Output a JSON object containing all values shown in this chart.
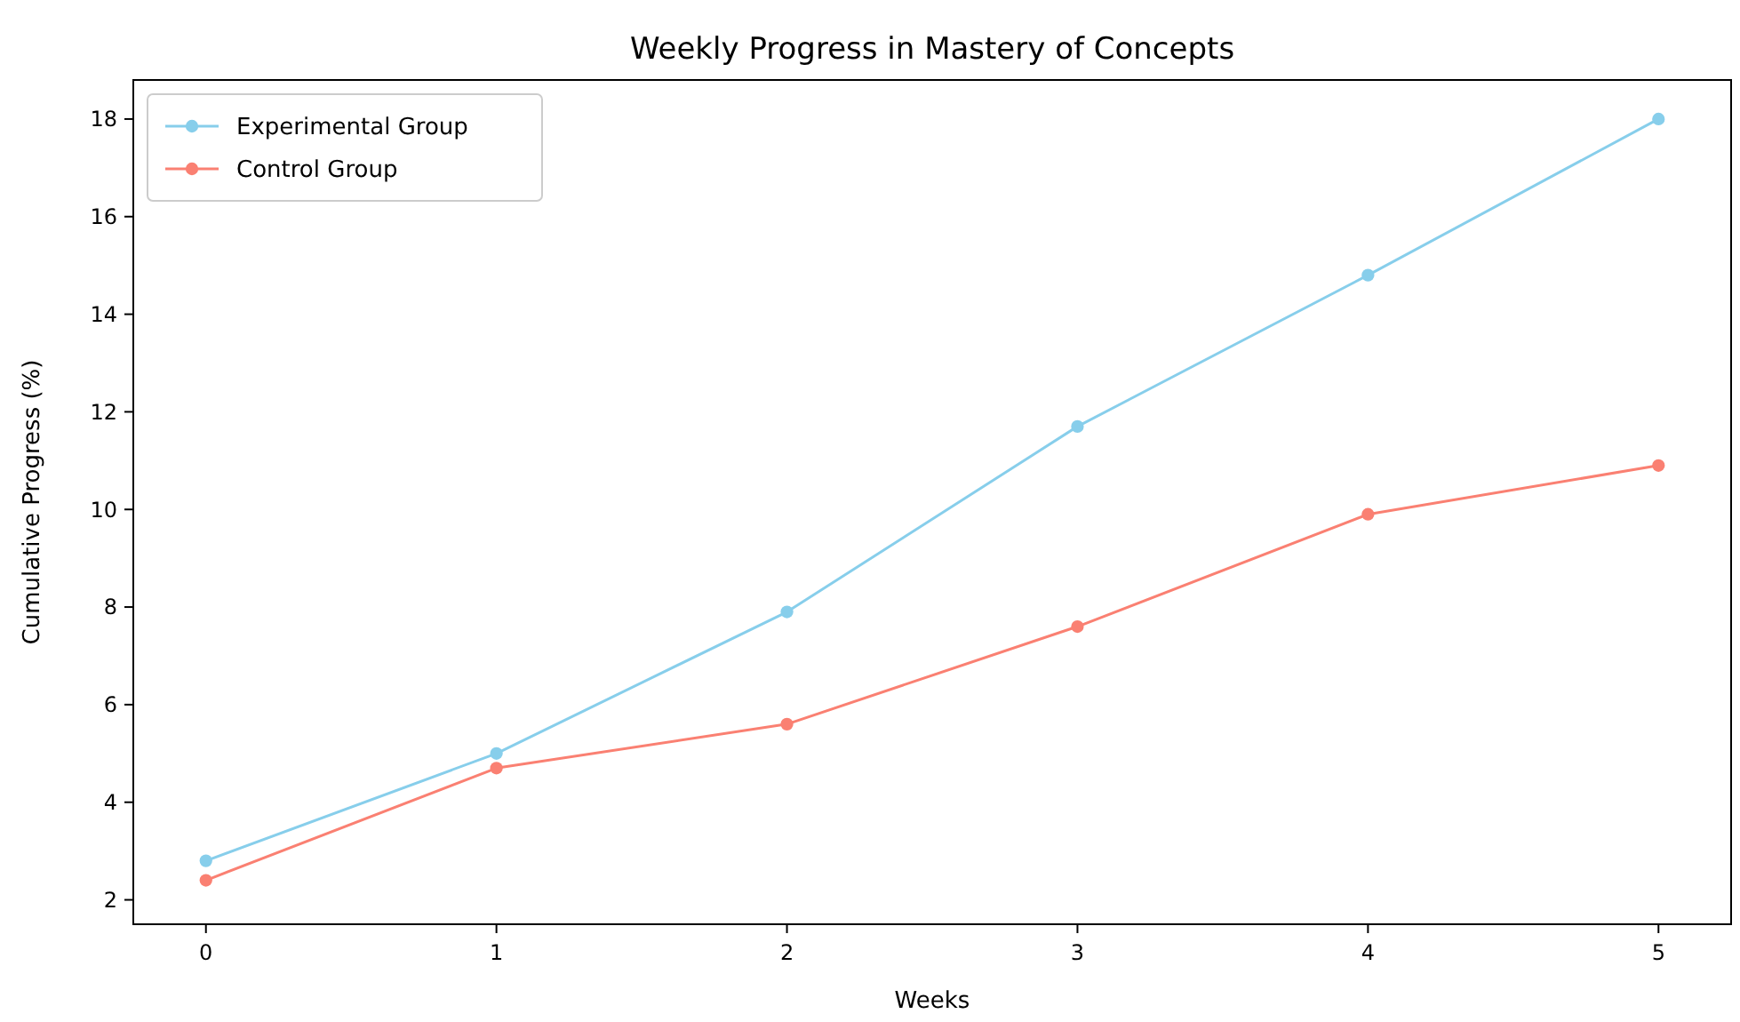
{
  "chart_data": {
    "type": "line",
    "title": "Weekly Progress in Mastery of Concepts",
    "xlabel": "Weeks",
    "ylabel": "Cumulative Progress (%)",
    "x": [
      0,
      1,
      2,
      3,
      4,
      5
    ],
    "series": [
      {
        "name": "Experimental Group",
        "color": "#87ceeb",
        "values": [
          2.8,
          5.0,
          7.9,
          11.7,
          14.8,
          18.0
        ]
      },
      {
        "name": "Control Group",
        "color": "#fa8072",
        "values": [
          2.4,
          4.7,
          5.6,
          7.6,
          9.9,
          10.9
        ]
      }
    ],
    "xlim": [
      -0.25,
      5.25
    ],
    "xticks": [
      0,
      1,
      2,
      3,
      4,
      5
    ],
    "ylim": [
      1.5,
      18.8
    ],
    "yticks": [
      2,
      4,
      6,
      8,
      10,
      12,
      14,
      16,
      18
    ],
    "marker": "circle",
    "line_style": "solid",
    "legend": "top left",
    "grid": false
  }
}
